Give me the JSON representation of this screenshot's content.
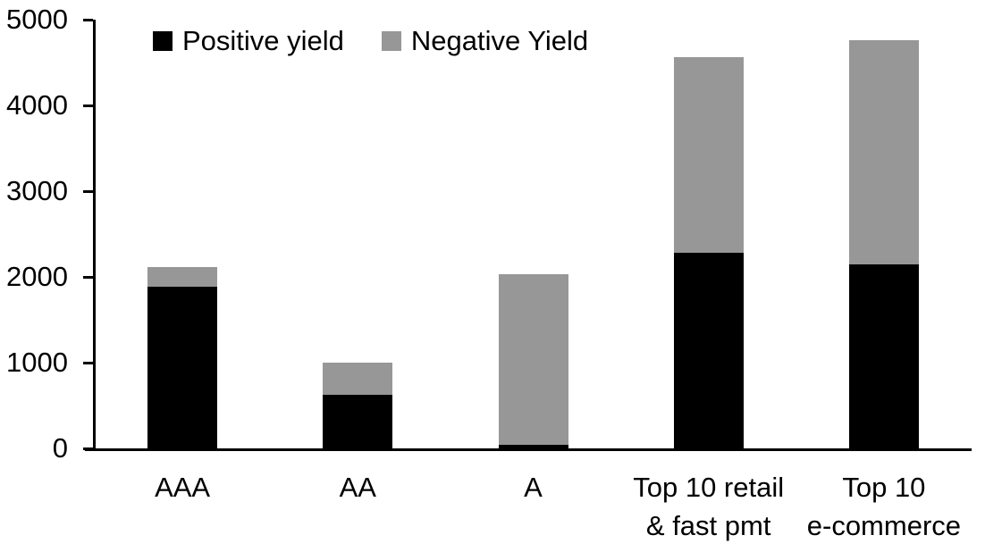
{
  "chart_data": {
    "type": "bar",
    "stacked": true,
    "title": "",
    "xlabel": "",
    "ylabel": "",
    "categories": [
      "AAA",
      "AA",
      "A",
      "Top 10 retail\n& fast pmt",
      "Top 10\ne-commerce"
    ],
    "series": [
      {
        "name": "Positive yield",
        "color": "#000000",
        "values": [
          1890,
          625,
          45,
          2285,
          2150
        ]
      },
      {
        "name": "Negative Yield",
        "color": "#979797",
        "values": [
          225,
          380,
          1985,
          2280,
          2610
        ]
      }
    ],
    "ylim": [
      0,
      5000
    ],
    "yticks": [
      0,
      1000,
      2000,
      3000,
      4000,
      5000
    ],
    "grid": false,
    "legend_position": "top-inside",
    "background_color": "#ffffff",
    "axis_color": "#000000"
  }
}
